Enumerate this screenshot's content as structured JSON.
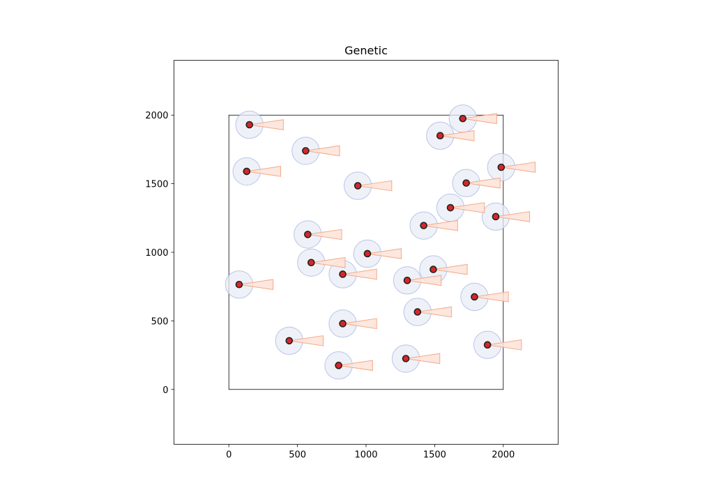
{
  "chart_data": {
    "type": "scatter",
    "title": "Genetic",
    "xlabel": "",
    "ylabel": "",
    "xlim": [
      -400,
      2400
    ],
    "ylim": [
      -400,
      2400
    ],
    "x_ticks": [
      0,
      500,
      1000,
      1500,
      2000
    ],
    "y_ticks": [
      0,
      500,
      1000,
      1500,
      2000
    ],
    "boundary": {
      "x": [
        0,
        2000
      ],
      "y": [
        0,
        2000
      ]
    },
    "grid": false,
    "sensor_radius": 100,
    "sector_length": 250,
    "sector_heading_deg": 0,
    "colors": {
      "circle_fill": "#e8ecf4",
      "circle_stroke": "#a9b8e6",
      "sector_fill": "#fde3d8",
      "sector_stroke": "#f4a987",
      "point_fill": "#d62728",
      "point_edge": "#222222"
    },
    "points": [
      {
        "x": 150,
        "y": 1930
      },
      {
        "x": 560,
        "y": 1740
      },
      {
        "x": 130,
        "y": 1590
      },
      {
        "x": 940,
        "y": 1485
      },
      {
        "x": 1705,
        "y": 1975
      },
      {
        "x": 1540,
        "y": 1850
      },
      {
        "x": 1985,
        "y": 1620
      },
      {
        "x": 1730,
        "y": 1505
      },
      {
        "x": 1615,
        "y": 1325
      },
      {
        "x": 1945,
        "y": 1260
      },
      {
        "x": 1420,
        "y": 1195
      },
      {
        "x": 575,
        "y": 1130
      },
      {
        "x": 1010,
        "y": 990
      },
      {
        "x": 600,
        "y": 925
      },
      {
        "x": 830,
        "y": 840
      },
      {
        "x": 1490,
        "y": 875
      },
      {
        "x": 1300,
        "y": 795
      },
      {
        "x": 75,
        "y": 765
      },
      {
        "x": 1790,
        "y": 675
      },
      {
        "x": 1375,
        "y": 565
      },
      {
        "x": 830,
        "y": 480
      },
      {
        "x": 440,
        "y": 355
      },
      {
        "x": 1885,
        "y": 325
      },
      {
        "x": 1290,
        "y": 225
      },
      {
        "x": 800,
        "y": 175
      }
    ]
  }
}
